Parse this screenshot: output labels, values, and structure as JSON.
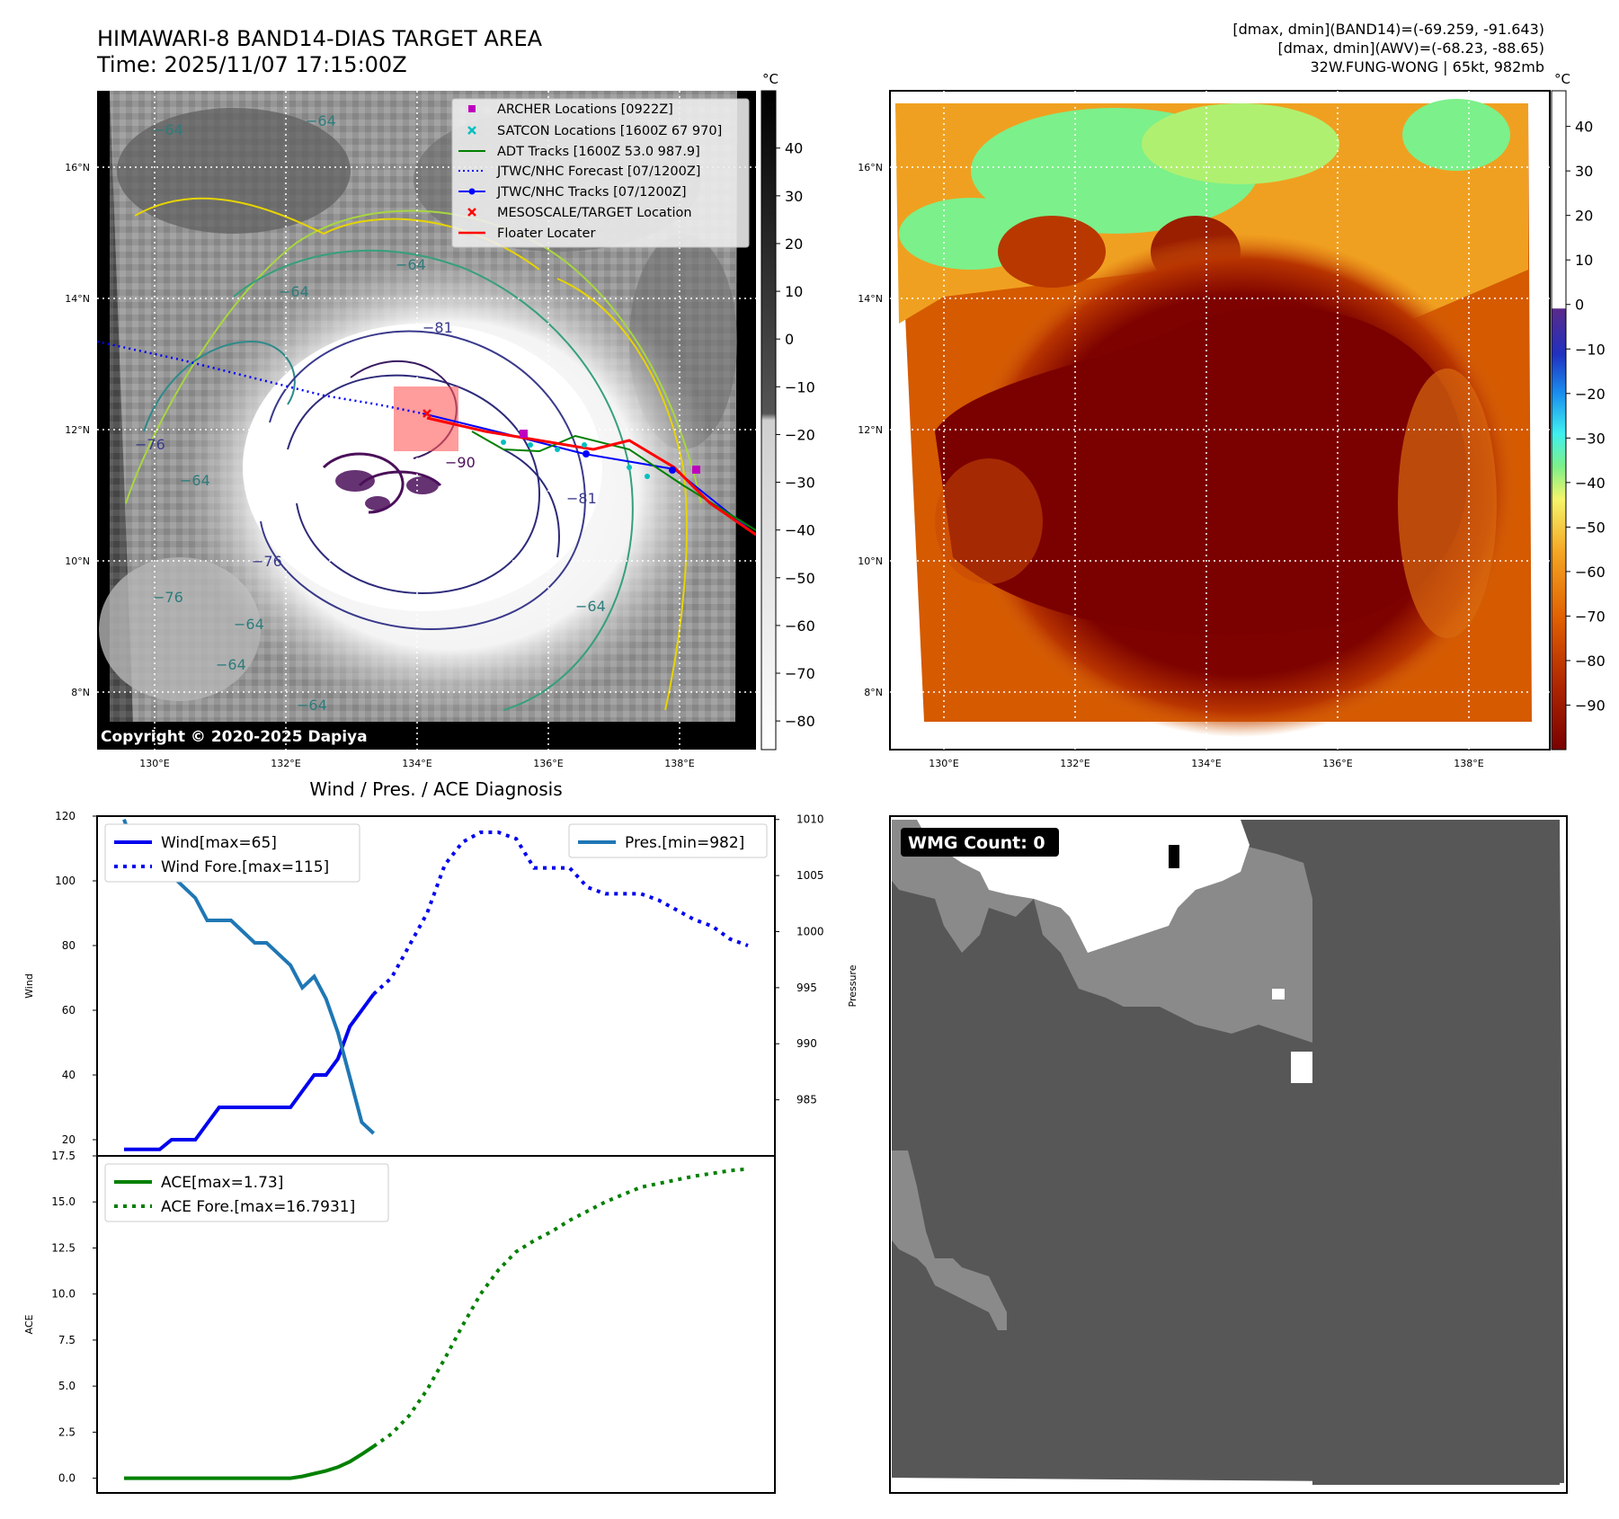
{
  "header": {
    "title_line1": "HIMAWARI-8 BAND14-DIAS TARGET AREA",
    "title_line2": "Time: 2025/11/07 17:15:00Z",
    "info_line1": "[dmax, dmin](BAND14)=(-69.259, -91.643)",
    "info_line2": "[dmax, dmin](AWV)=(-68.23, -88.65)",
    "info_line3": "32W.FUNG-WONG | 65kt, 982mb"
  },
  "map_axes": {
    "lat_labels": [
      "16°N",
      "14°N",
      "12°N",
      "10°N",
      "8°N"
    ],
    "lon_labels": [
      "130°E",
      "132°E",
      "134°E",
      "136°E",
      "138°E"
    ]
  },
  "ir_colorbar": {
    "unit": "°C",
    "ticks": [
      "40",
      "30",
      "20",
      "10",
      "0",
      "−10",
      "−20",
      "−30",
      "−40",
      "−50",
      "−60",
      "−70",
      "−80"
    ]
  },
  "awv_colorbar": {
    "unit": "°C",
    "ticks": [
      "40",
      "30",
      "20",
      "10",
      "0",
      "−10",
      "−20",
      "−30",
      "−40",
      "−50",
      "−60",
      "−70",
      "−80",
      "−90"
    ]
  },
  "map_legend": [
    {
      "label": "ARCHER Locations [0922Z]",
      "color": "#bf00bf",
      "marker": "square"
    },
    {
      "label": "SATCON Locations [1600Z 67 970]",
      "color": "#00bfbf",
      "marker": "x"
    },
    {
      "label": "ADT Tracks [1600Z 53.0 987.9]",
      "color": "#008000",
      "marker": "line"
    },
    {
      "label": "JTWC/NHC Forecast [07/1200Z]",
      "color": "#0000ff",
      "marker": "dotted"
    },
    {
      "label": "JTWC/NHC Tracks [07/1200Z]",
      "color": "#0000ff",
      "marker": "line-dot"
    },
    {
      "label": "MESOSCALE/TARGET Location",
      "color": "#ff0000",
      "marker": "x"
    },
    {
      "label": "Floater Locater",
      "color": "#ff0000",
      "marker": "line"
    }
  ],
  "contour_labels": [
    "−64",
    "−64",
    "−64",
    "−64",
    "−64",
    "−76",
    "−76",
    "−81",
    "−81",
    "−90",
    "−64",
    "−64",
    "−64",
    "−76",
    "−64"
  ],
  "copyright": "Copyright © 2020-2025 Dapiya",
  "wmg": {
    "label": "WMG Count: 0"
  },
  "diagnosis_title": "Wind / Pres. / ACE Diagnosis",
  "chart_data": [
    {
      "type": "line",
      "title": "Wind / Pres. / ACE Diagnosis",
      "xlabel": "",
      "ylabel": "Wind",
      "ylabel_right": "Pressure",
      "ylim": [
        15,
        120
      ],
      "ylim_right": [
        980,
        1010.3
      ],
      "x": [
        0,
        1,
        2,
        3,
        4,
        5,
        6,
        7,
        8,
        9,
        10,
        11,
        12,
        13,
        14,
        15,
        16,
        17,
        18,
        19,
        20,
        21,
        22,
        23,
        24,
        25,
        26,
        27,
        28,
        29,
        30,
        31,
        32,
        33,
        34,
        35,
        36,
        37,
        38,
        39,
        40,
        41,
        42,
        43,
        44,
        45,
        46,
        47,
        48,
        49,
        50,
        51,
        52,
        53,
        54,
        55,
        56,
        57,
        58,
        59,
        60,
        61,
        62,
        63,
        64,
        65,
        66,
        67,
        68,
        69,
        70,
        71,
        72,
        73,
        74,
        75,
        76,
        77,
        78,
        79,
        80,
        81,
        82,
        83,
        84,
        85,
        86,
        87,
        88,
        89,
        90,
        91,
        92,
        93,
        94,
        95,
        96,
        97,
        98,
        99,
        100,
        101,
        102,
        103,
        104,
        105
      ],
      "yticks": [
        "120",
        "100",
        "80",
        "60",
        "40",
        "20"
      ],
      "yticks_right": [
        "1010",
        "1005",
        "1000",
        "995",
        "990",
        "985"
      ],
      "series": [
        {
          "name": "Wind[max=65]",
          "axis": "left",
          "style": "solid",
          "color": "#0000ee",
          "x": [
            0,
            2,
            4,
            6,
            8,
            10,
            12,
            14,
            16,
            18,
            20,
            22,
            24,
            26,
            28,
            30,
            32,
            34,
            36,
            38,
            40,
            42
          ],
          "values": [
            17,
            17,
            17,
            17,
            20,
            20,
            20,
            25,
            30,
            30,
            30,
            30,
            30,
            30,
            30,
            35,
            40,
            40,
            45,
            55,
            60,
            65
          ]
        },
        {
          "name": "Wind Fore.[max=115]",
          "axis": "left",
          "style": "dotted",
          "color": "#0000ee",
          "x": [
            42,
            45,
            48,
            51,
            54,
            57,
            60,
            63,
            66,
            69,
            72,
            75,
            78,
            81,
            84,
            87,
            90,
            93,
            96,
            99,
            102,
            105
          ],
          "values": [
            65,
            70,
            80,
            90,
            105,
            112,
            115,
            115,
            113,
            104,
            104,
            104,
            98,
            96,
            96,
            96,
            94,
            91,
            88,
            86,
            82,
            80
          ]
        },
        {
          "name": "Pres.[min=982]",
          "axis": "right",
          "style": "solid",
          "color": "#1f77b4",
          "x": [
            0,
            2,
            4,
            6,
            8,
            10,
            12,
            14,
            16,
            18,
            20,
            22,
            24,
            26,
            28,
            30,
            32,
            34,
            36,
            38,
            40,
            42
          ],
          "values": [
            1010,
            1007,
            1006,
            1006,
            1005,
            1004,
            1003,
            1001,
            1001,
            1001,
            1000,
            999,
            999,
            998,
            997,
            995,
            996,
            994,
            991,
            987,
            983,
            982
          ]
        }
      ]
    },
    {
      "type": "line",
      "title": "",
      "xlabel": "",
      "ylabel": "ACE",
      "ylim": [
        -0.8,
        17.5
      ],
      "x": [
        0,
        1,
        2,
        3,
        4,
        5,
        6,
        7,
        8,
        9,
        10,
        11,
        12,
        13,
        14,
        15,
        16,
        17,
        18,
        19,
        20,
        21,
        22,
        23,
        24,
        25,
        26,
        27,
        28,
        29,
        30,
        31,
        32,
        33,
        34,
        35,
        36,
        37,
        38,
        39,
        40,
        41,
        42,
        43,
        44,
        45,
        46,
        47,
        48,
        49,
        50,
        51,
        52,
        53,
        54,
        55,
        56,
        57,
        58,
        59,
        60,
        61,
        62,
        63,
        64,
        65,
        66,
        67,
        68,
        69,
        70,
        71,
        72,
        73,
        74,
        75,
        76,
        77,
        78,
        79,
        80,
        81,
        82,
        83,
        84,
        85,
        86,
        87,
        88,
        89,
        90,
        91,
        92,
        93,
        94,
        95,
        96,
        97,
        98,
        99,
        100,
        101,
        102,
        103,
        104,
        105
      ],
      "yticks": [
        "17.5",
        "15.0",
        "12.5",
        "10.0",
        "7.5",
        "5.0",
        "2.5",
        "0.0"
      ],
      "series": [
        {
          "name": "ACE[max=1.73]",
          "style": "solid",
          "color": "#008000",
          "x": [
            0,
            2,
            4,
            6,
            8,
            10,
            12,
            14,
            16,
            18,
            20,
            22,
            24,
            26,
            28,
            30,
            32,
            34,
            36,
            38,
            40,
            42
          ],
          "values": [
            0,
            0,
            0,
            0,
            0,
            0,
            0,
            0,
            0,
            0,
            0,
            0,
            0,
            0,
            0,
            0.1,
            0.25,
            0.4,
            0.6,
            0.9,
            1.3,
            1.73
          ]
        },
        {
          "name": "ACE Fore.[max=16.7931]",
          "style": "dotted",
          "color": "#008000",
          "x": [
            42,
            45,
            48,
            51,
            54,
            57,
            60,
            63,
            66,
            69,
            72,
            75,
            78,
            81,
            84,
            87,
            90,
            93,
            96,
            99,
            102,
            105
          ],
          "values": [
            1.73,
            2.4,
            3.4,
            4.8,
            6.5,
            8.3,
            10.0,
            11.3,
            12.3,
            12.9,
            13.4,
            14.0,
            14.5,
            15.0,
            15.4,
            15.8,
            16.0,
            16.2,
            16.4,
            16.55,
            16.7,
            16.79
          ]
        }
      ]
    }
  ]
}
